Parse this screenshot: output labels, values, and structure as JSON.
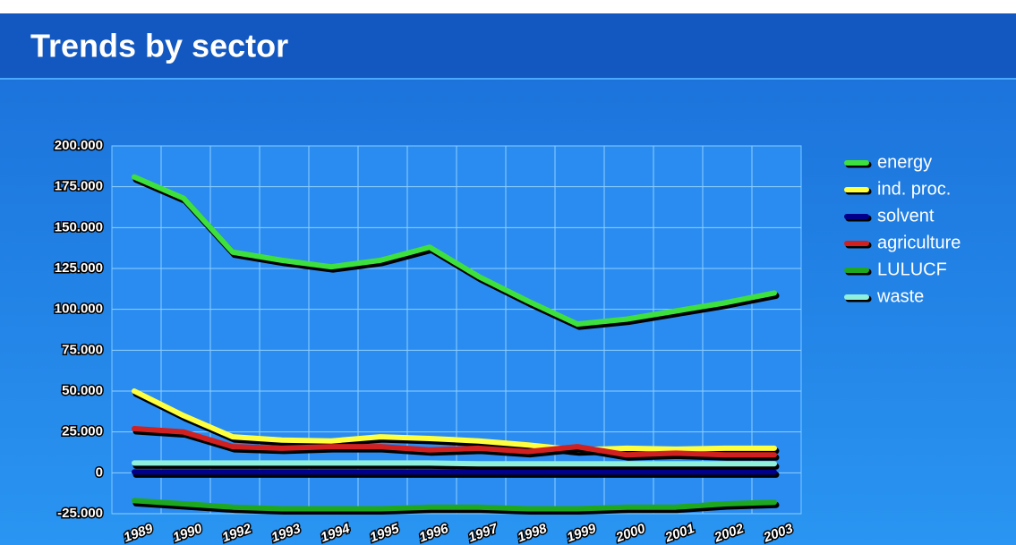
{
  "chart_data": {
    "type": "line",
    "title": "Trends by sector",
    "categories": [
      "1989",
      "1990",
      "1992",
      "1993",
      "1994",
      "1995",
      "1996",
      "1997",
      "1998",
      "1999",
      "2000",
      "2001",
      "2002",
      "2003"
    ],
    "series": [
      {
        "name": "energy",
        "color": "#3ee03e",
        "values": [
          181000,
          168000,
          135000,
          130000,
          126000,
          130000,
          138000,
          120000,
          105000,
          91000,
          94000,
          99000,
          104000,
          110000
        ]
      },
      {
        "name": "ind. proc.",
        "color": "#ffff40",
        "values": [
          50000,
          35000,
          22000,
          20000,
          19500,
          22000,
          21000,
          19500,
          17000,
          14000,
          15000,
          14500,
          15000,
          15000
        ]
      },
      {
        "name": "solvent",
        "color": "#00008a",
        "values": [
          500,
          500,
          500,
          500,
          500,
          500,
          500,
          500,
          500,
          500,
          500,
          500,
          500,
          500
        ]
      },
      {
        "name": "agriculture",
        "color": "#d02020",
        "values": [
          27000,
          25000,
          16000,
          15000,
          16000,
          16000,
          14000,
          15000,
          13000,
          16000,
          11000,
          12000,
          11000,
          11000
        ]
      },
      {
        "name": "LULUCF",
        "color": "#1fa81f",
        "values": [
          -17000,
          -19000,
          -21000,
          -22000,
          -22000,
          -22000,
          -21000,
          -21000,
          -22000,
          -22000,
          -21000,
          -21000,
          -19000,
          -18000
        ]
      },
      {
        "name": "waste",
        "color": "#8ff0dc",
        "values": [
          6000,
          6000,
          6000,
          6000,
          6000,
          6000,
          6000,
          5500,
          5500,
          5500,
          5500,
          5500,
          5500,
          5500
        ]
      }
    ],
    "ylim": [
      -25000,
      200000
    ],
    "yticks": [
      {
        "value": -25000,
        "label": "-25.000"
      },
      0,
      {
        "value": 25000,
        "label": "25.000"
      },
      {
        "value": 50000,
        "label": "50.000"
      },
      {
        "value": 75000,
        "label": "75.000"
      },
      {
        "value": 100000,
        "label": "100.000"
      },
      {
        "value": 125000,
        "label": "125.000"
      },
      {
        "value": 150000,
        "label": "150.000"
      },
      {
        "value": 175000,
        "label": "175.000"
      },
      {
        "value": 200000,
        "label": "200.000"
      }
    ],
    "grid": true
  }
}
